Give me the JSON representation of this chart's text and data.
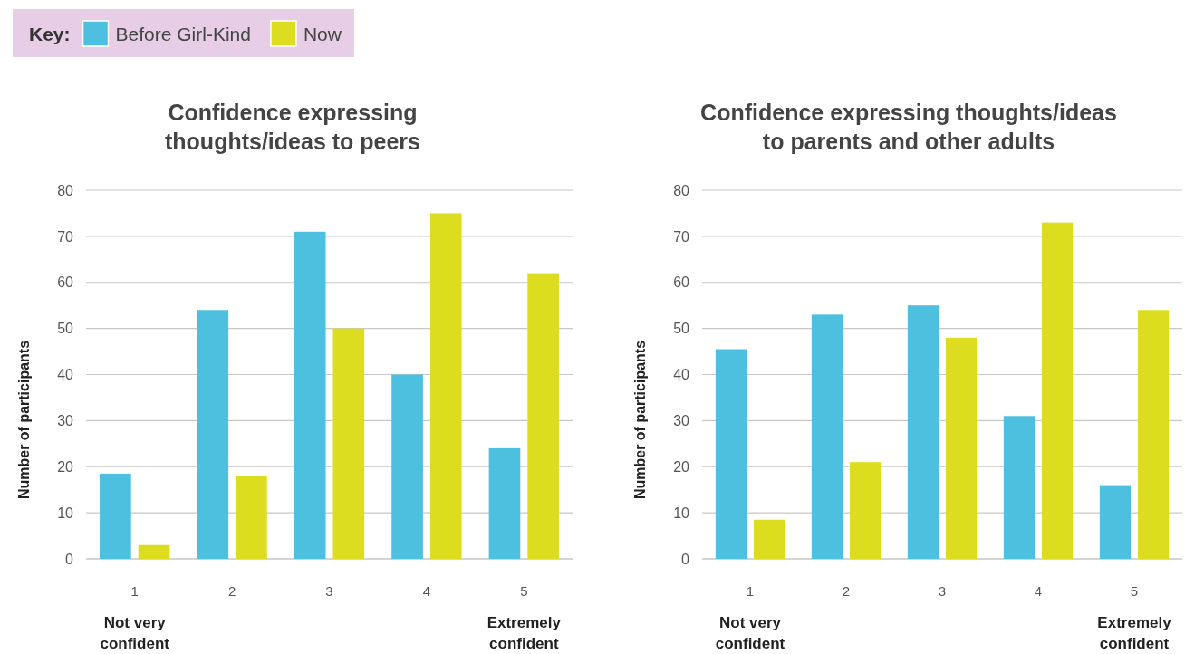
{
  "chart_data": [
    {
      "type": "bar",
      "title": "Confidence expressing\nthoughts/ideas to peers",
      "ylabel": "Number of participants",
      "legend_title": "Key:",
      "legend": "top left",
      "categories": [
        "1",
        "2",
        "3",
        "4",
        "5"
      ],
      "series": [
        {
          "name": "Before Girl-Kind",
          "color": "#4dbfdf",
          "values": [
            18.5,
            54,
            71,
            40,
            24
          ]
        },
        {
          "name": "Now",
          "color": "#dddd1f",
          "values": [
            3,
            18,
            50,
            75,
            62
          ]
        }
      ],
      "ylim": [
        0,
        80
      ],
      "yticks": [
        0,
        10,
        20,
        30,
        40,
        50,
        60,
        70,
        80
      ],
      "grid": "y",
      "annotations": [
        "Not very\nconfident",
        "Extremely\nconfident"
      ]
    },
    {
      "type": "bar",
      "title": "Confidence expressing thoughts/ideas\nto parents and other adults",
      "ylabel": "Number of participants",
      "categories": [
        "1",
        "2",
        "3",
        "4",
        "5"
      ],
      "series": [
        {
          "color": "#4dbfdf",
          "values": [
            45.5,
            53,
            55,
            31,
            16
          ]
        },
        {
          "color": "#dddd1f",
          "values": [
            8.5,
            21,
            48,
            73,
            54
          ]
        }
      ],
      "ylim": [
        0,
        80
      ],
      "yticks": [
        0,
        10,
        20,
        30,
        40,
        50,
        60,
        70,
        80
      ],
      "grid": "y",
      "annotations": [
        "Not very\nconfident",
        "Extremely\nconfident"
      ]
    }
  ]
}
